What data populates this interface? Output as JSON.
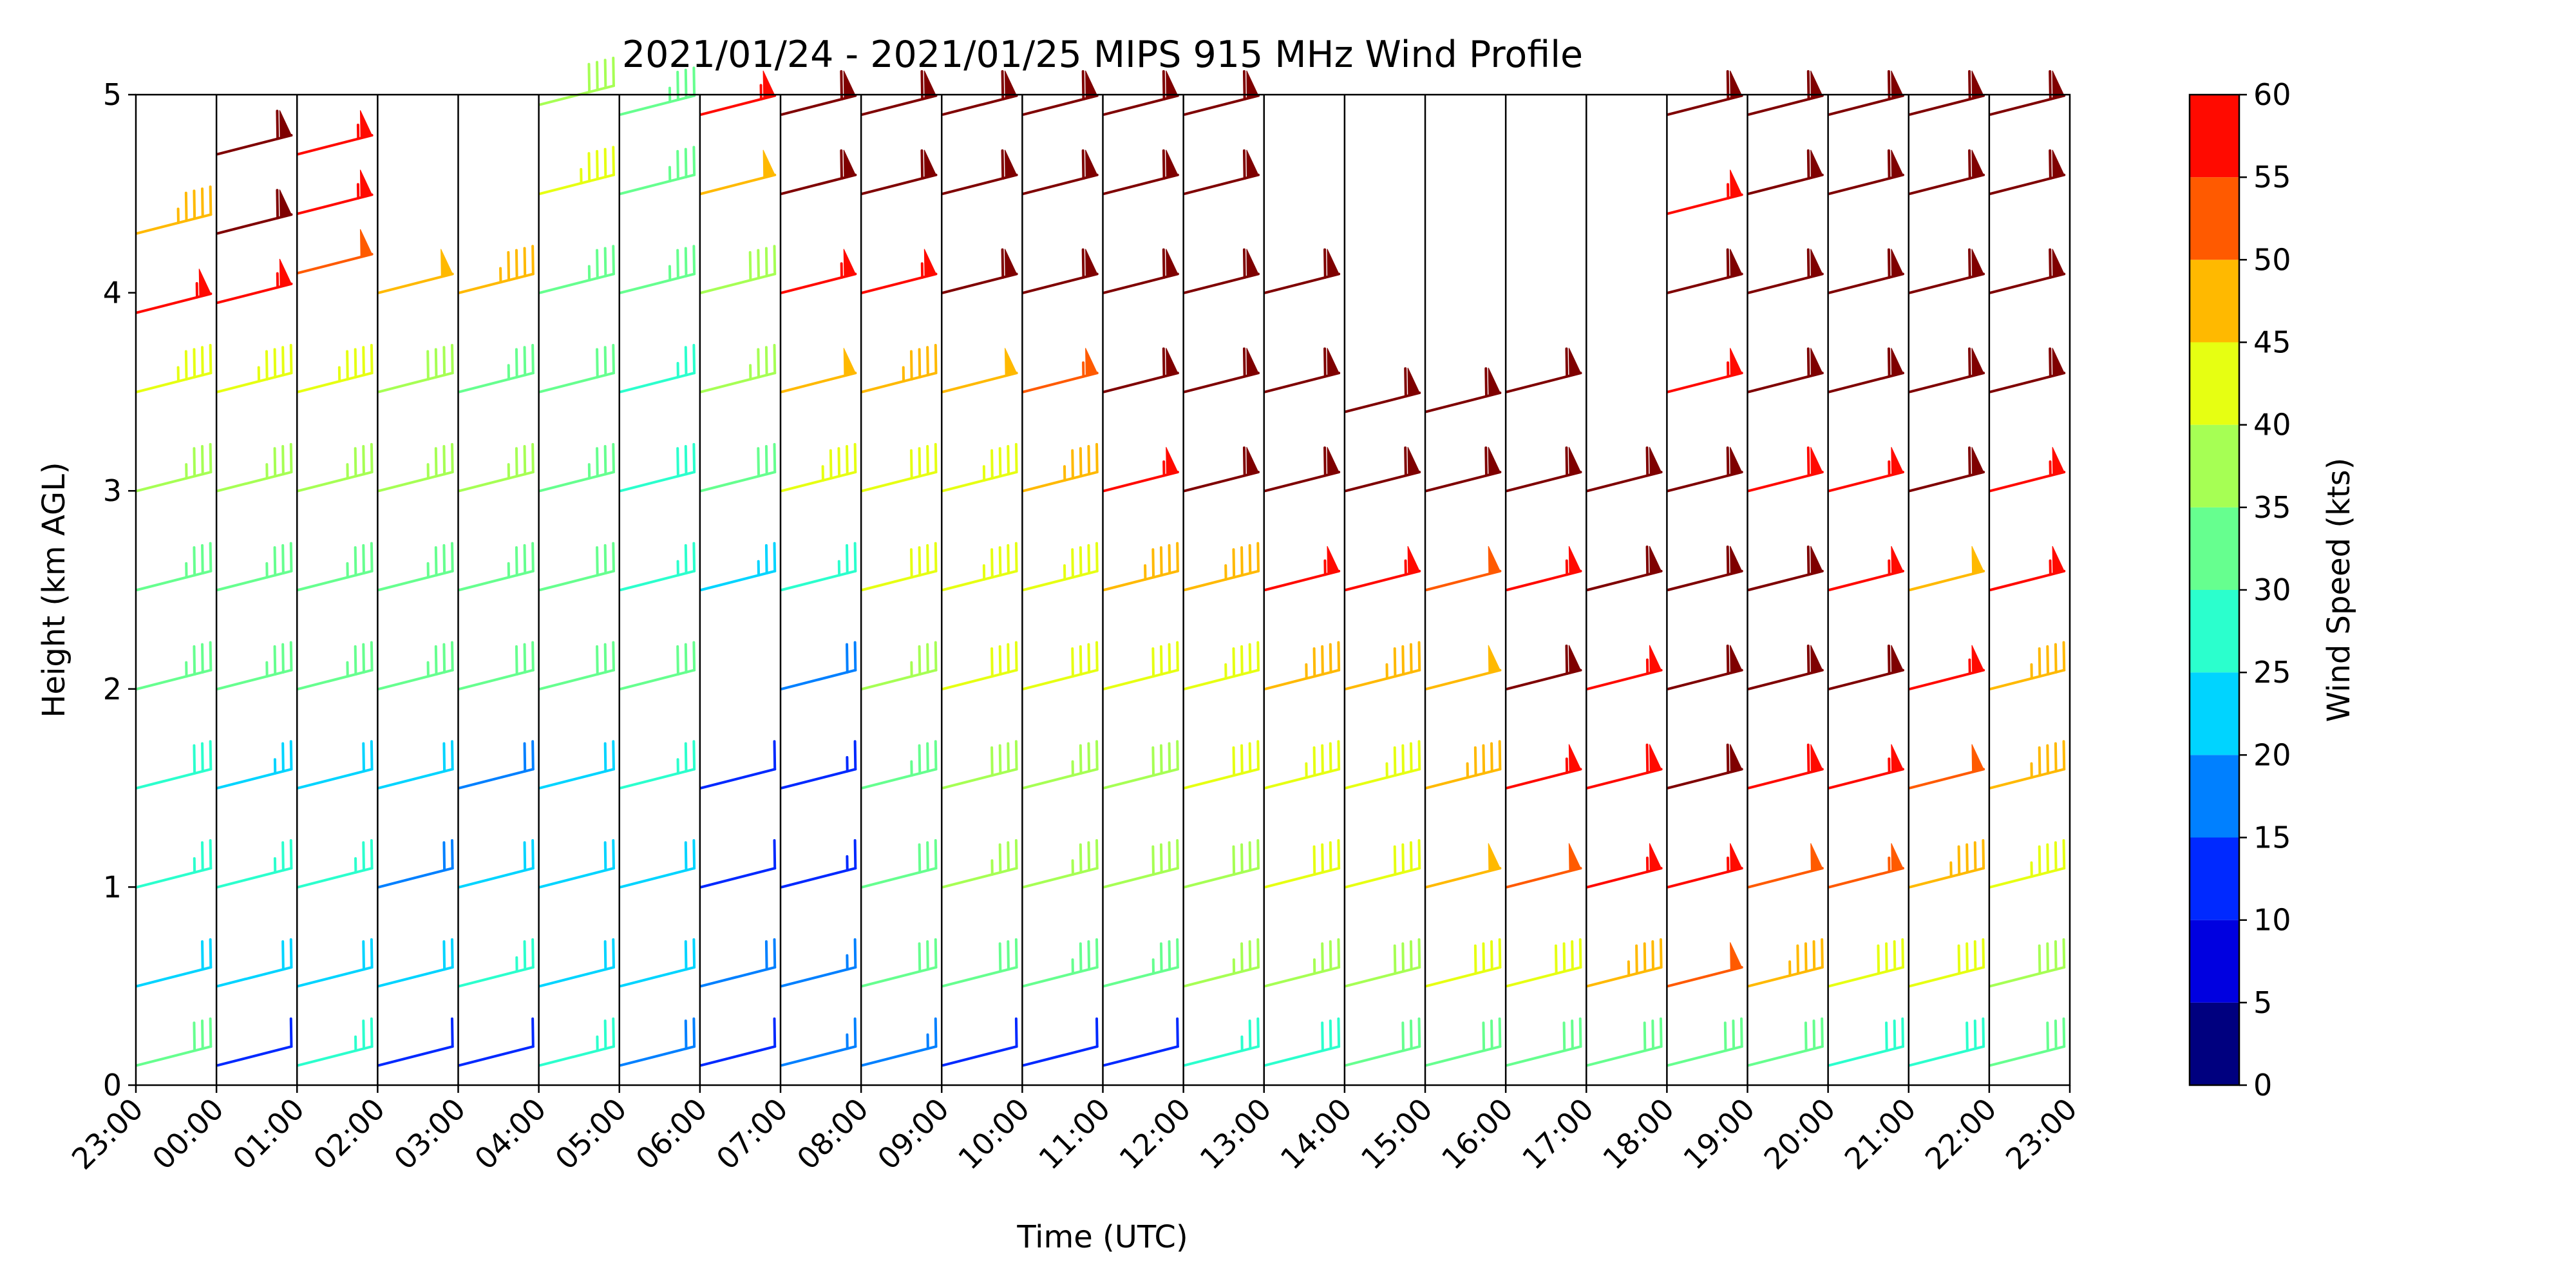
{
  "chart_data": {
    "type": "wind_barbs",
    "title": "2021/01/24 - 2021/01/25 MIPS 915 MHz Wind Profile",
    "xlabel": "Time (UTC)",
    "ylabel": "Height (km AGL)",
    "x_tick_labels": [
      "23:00",
      "00:00",
      "01:00",
      "02:00",
      "03:00",
      "04:00",
      "05:00",
      "06:00",
      "07:00",
      "08:00",
      "09:00",
      "10:00",
      "11:00",
      "12:00",
      "13:00",
      "14:00",
      "15:00",
      "16:00",
      "17:00",
      "18:00",
      "19:00",
      "20:00",
      "21:00",
      "22:00",
      "23:00"
    ],
    "ylim": [
      0,
      5
    ],
    "y_ticks": [
      0,
      1,
      2,
      3,
      4,
      5
    ],
    "colorbar": {
      "label": "Wind Speed (kts)",
      "ticks": [
        0,
        5,
        10,
        15,
        20,
        25,
        30,
        35,
        40,
        45,
        50,
        55,
        60
      ],
      "colors": [
        "#00007f",
        "#0000e0",
        "#0029ff",
        "#0080ff",
        "#00d4ff",
        "#2bffcd",
        "#66ff8f",
        "#a6ff54",
        "#e6ff12",
        "#ffb900",
        "#ff5a00",
        "#ff0a00",
        "#7f0000"
      ]
    },
    "profiles": [
      {
        "time": "23:00",
        "levels": [
          [
            0.1,
            30
          ],
          [
            0.5,
            22
          ],
          [
            1.0,
            26
          ],
          [
            1.5,
            28
          ],
          [
            2.0,
            33
          ],
          [
            2.5,
            34
          ],
          [
            3.0,
            37
          ],
          [
            3.5,
            43
          ],
          [
            3.9,
            57
          ],
          [
            4.3,
            46
          ]
        ]
      },
      {
        "time": "00:00",
        "levels": [
          [
            0.1,
            12
          ],
          [
            0.5,
            22
          ],
          [
            1.0,
            25
          ],
          [
            1.5,
            24
          ],
          [
            2.0,
            33
          ],
          [
            2.5,
            34
          ],
          [
            3.0,
            37
          ],
          [
            3.5,
            43
          ],
          [
            3.95,
            57
          ],
          [
            4.3,
            60
          ],
          [
            4.7,
            60
          ]
        ]
      },
      {
        "time": "01:00",
        "levels": [
          [
            0.1,
            25
          ],
          [
            0.5,
            22
          ],
          [
            1.0,
            26
          ],
          [
            1.5,
            22
          ],
          [
            2.0,
            33
          ],
          [
            2.5,
            34
          ],
          [
            3.0,
            37
          ],
          [
            3.5,
            44
          ],
          [
            4.1,
            50
          ],
          [
            4.4,
            57
          ],
          [
            4.7,
            57
          ]
        ]
      },
      {
        "time": "02:00",
        "levels": [
          [
            0.1,
            12
          ],
          [
            0.5,
            22
          ],
          [
            1.0,
            18
          ],
          [
            1.5,
            22
          ],
          [
            2.0,
            33
          ],
          [
            2.5,
            34
          ],
          [
            3.0,
            37
          ],
          [
            3.5,
            38
          ],
          [
            4.0,
            48
          ]
        ]
      },
      {
        "time": "03:00",
        "levels": [
          [
            0.1,
            11
          ],
          [
            0.5,
            25
          ],
          [
            1.0,
            20
          ],
          [
            1.5,
            18
          ],
          [
            2.0,
            32
          ],
          [
            2.5,
            33
          ],
          [
            3.0,
            35
          ],
          [
            3.5,
            34
          ],
          [
            4.0,
            46
          ]
        ]
      },
      {
        "time": "04:00",
        "levels": [
          [
            0.1,
            25
          ],
          [
            0.5,
            22
          ],
          [
            1.0,
            22
          ],
          [
            1.5,
            20
          ],
          [
            2.0,
            32
          ],
          [
            2.5,
            31
          ],
          [
            3.0,
            34
          ],
          [
            3.5,
            30
          ],
          [
            4.0,
            34
          ],
          [
            4.5,
            43
          ],
          [
            4.95,
            39
          ]
        ]
      },
      {
        "time": "05:00",
        "levels": [
          [
            0.1,
            18
          ],
          [
            0.5,
            22
          ],
          [
            1.0,
            22
          ],
          [
            1.5,
            25
          ],
          [
            2.0,
            30
          ],
          [
            2.5,
            27
          ],
          [
            3.0,
            29
          ],
          [
            3.5,
            27
          ],
          [
            4.0,
            34
          ],
          [
            4.5,
            33
          ],
          [
            4.9,
            33
          ]
        ]
      },
      {
        "time": "06:00",
        "levels": [
          [
            0.1,
            12
          ],
          [
            0.5,
            18
          ],
          [
            1.0,
            12
          ],
          [
            1.5,
            12
          ],
          [
            2.5,
            23
          ],
          [
            3.0,
            30
          ],
          [
            3.5,
            36
          ],
          [
            4.0,
            39
          ],
          [
            4.5,
            48
          ],
          [
            4.9,
            57
          ]
        ]
      },
      {
        "time": "07:00",
        "levels": [
          [
            0.1,
            16
          ],
          [
            0.5,
            16
          ],
          [
            1.0,
            13
          ],
          [
            1.5,
            13
          ],
          [
            2.0,
            18
          ],
          [
            2.5,
            27
          ],
          [
            3.0,
            44
          ],
          [
            3.5,
            48
          ],
          [
            4.0,
            57
          ],
          [
            4.5,
            60
          ],
          [
            4.9,
            60
          ]
        ]
      },
      {
        "time": "08:00",
        "levels": [
          [
            0.1,
            16
          ],
          [
            0.5,
            30
          ],
          [
            1.0,
            32
          ],
          [
            1.5,
            34
          ],
          [
            2.0,
            37
          ],
          [
            2.5,
            40
          ],
          [
            3.0,
            42
          ],
          [
            3.5,
            46
          ],
          [
            4.0,
            57
          ],
          [
            4.5,
            60
          ],
          [
            4.9,
            60
          ]
        ]
      },
      {
        "time": "09:00",
        "levels": [
          [
            0.1,
            10
          ],
          [
            0.5,
            32
          ],
          [
            1.0,
            36
          ],
          [
            1.5,
            38
          ],
          [
            2.0,
            40
          ],
          [
            2.5,
            44
          ],
          [
            3.0,
            44
          ],
          [
            3.5,
            48
          ],
          [
            4.0,
            60
          ],
          [
            4.5,
            60
          ],
          [
            4.9,
            60
          ]
        ]
      },
      {
        "time": "10:00",
        "levels": [
          [
            0.1,
            12
          ],
          [
            0.5,
            33
          ],
          [
            1.0,
            36
          ],
          [
            1.5,
            36
          ],
          [
            2.0,
            40
          ],
          [
            2.5,
            44
          ],
          [
            3.0,
            46
          ],
          [
            3.5,
            54
          ],
          [
            4.0,
            60
          ],
          [
            4.5,
            60
          ],
          [
            4.9,
            60
          ]
        ]
      },
      {
        "time": "11:00",
        "levels": [
          [
            0.1,
            12
          ],
          [
            0.5,
            33
          ],
          [
            1.0,
            38
          ],
          [
            1.5,
            38
          ],
          [
            2.0,
            42
          ],
          [
            2.5,
            45
          ],
          [
            3.0,
            55
          ],
          [
            3.5,
            60
          ],
          [
            4.0,
            60
          ],
          [
            4.5,
            60
          ],
          [
            4.9,
            60
          ]
        ]
      },
      {
        "time": "12:00",
        "levels": [
          [
            0.1,
            25
          ],
          [
            0.5,
            35
          ],
          [
            1.0,
            38
          ],
          [
            1.5,
            40
          ],
          [
            2.0,
            43
          ],
          [
            2.5,
            46
          ],
          [
            3.0,
            60
          ],
          [
            3.5,
            60
          ],
          [
            4.0,
            60
          ],
          [
            4.5,
            60
          ],
          [
            4.9,
            60
          ]
        ]
      },
      {
        "time": "13:00",
        "levels": [
          [
            0.1,
            28
          ],
          [
            0.5,
            36
          ],
          [
            1.0,
            40
          ],
          [
            1.5,
            43
          ],
          [
            2.0,
            45
          ],
          [
            2.5,
            55
          ],
          [
            3.0,
            60
          ],
          [
            3.5,
            60
          ],
          [
            4.0,
            60
          ]
        ]
      },
      {
        "time": "14:00",
        "levels": [
          [
            0.1,
            30
          ],
          [
            0.5,
            38
          ],
          [
            1.0,
            42
          ],
          [
            1.5,
            44
          ],
          [
            2.0,
            45
          ],
          [
            2.5,
            55
          ],
          [
            3.0,
            60
          ],
          [
            3.4,
            60
          ]
        ]
      },
      {
        "time": "15:00",
        "levels": [
          [
            0.1,
            32
          ],
          [
            0.5,
            40
          ],
          [
            1.0,
            48
          ],
          [
            1.5,
            46
          ],
          [
            2.0,
            48
          ],
          [
            2.5,
            50
          ],
          [
            3.0,
            60
          ],
          [
            3.4,
            60
          ]
        ]
      },
      {
        "time": "16:00",
        "levels": [
          [
            0.1,
            32
          ],
          [
            0.5,
            40
          ],
          [
            1.0,
            50
          ],
          [
            1.5,
            55
          ],
          [
            2.0,
            60
          ],
          [
            2.5,
            55
          ],
          [
            3.0,
            60
          ],
          [
            3.5,
            60
          ]
        ]
      },
      {
        "time": "17:00",
        "levels": [
          [
            0.1,
            32
          ],
          [
            0.5,
            45
          ],
          [
            1.0,
            57
          ],
          [
            1.5,
            58
          ],
          [
            2.0,
            55
          ],
          [
            2.5,
            60
          ],
          [
            3.0,
            60
          ]
        ]
      },
      {
        "time": "18:00",
        "levels": [
          [
            0.1,
            32
          ],
          [
            0.5,
            50
          ],
          [
            1.0,
            56
          ],
          [
            1.5,
            60
          ],
          [
            2.0,
            60
          ],
          [
            2.5,
            60
          ],
          [
            3.0,
            60
          ],
          [
            3.5,
            56
          ],
          [
            4.0,
            60
          ],
          [
            4.4,
            56
          ],
          [
            4.9,
            60
          ]
        ]
      },
      {
        "time": "19:00",
        "levels": [
          [
            0.1,
            30
          ],
          [
            0.5,
            45
          ],
          [
            1.0,
            52
          ],
          [
            1.5,
            58
          ],
          [
            2.0,
            60
          ],
          [
            2.5,
            60
          ],
          [
            3.0,
            58
          ],
          [
            3.5,
            60
          ],
          [
            4.0,
            60
          ],
          [
            4.5,
            60
          ],
          [
            4.9,
            60
          ]
        ]
      },
      {
        "time": "20:00",
        "levels": [
          [
            0.1,
            28
          ],
          [
            0.5,
            40
          ],
          [
            1.0,
            54
          ],
          [
            1.5,
            55
          ],
          [
            2.0,
            60
          ],
          [
            2.5,
            56
          ],
          [
            3.0,
            56
          ],
          [
            3.5,
            60
          ],
          [
            4.0,
            60
          ],
          [
            4.5,
            60
          ],
          [
            4.9,
            60
          ]
        ]
      },
      {
        "time": "21:00",
        "levels": [
          [
            0.1,
            28
          ],
          [
            0.5,
            40
          ],
          [
            1.0,
            45
          ],
          [
            1.5,
            50
          ],
          [
            2.0,
            55
          ],
          [
            2.5,
            48
          ],
          [
            3.0,
            60
          ],
          [
            3.5,
            60
          ],
          [
            4.0,
            60
          ],
          [
            4.5,
            60
          ],
          [
            4.9,
            60
          ]
        ]
      },
      {
        "time": "22:00",
        "levels": [
          [
            0.1,
            30
          ],
          [
            0.5,
            38
          ],
          [
            1.0,
            44
          ],
          [
            1.5,
            45
          ],
          [
            2.0,
            45
          ],
          [
            2.5,
            55
          ],
          [
            3.0,
            56
          ],
          [
            3.5,
            60
          ],
          [
            4.0,
            60
          ],
          [
            4.5,
            60
          ],
          [
            4.9,
            60
          ]
        ]
      }
    ]
  }
}
